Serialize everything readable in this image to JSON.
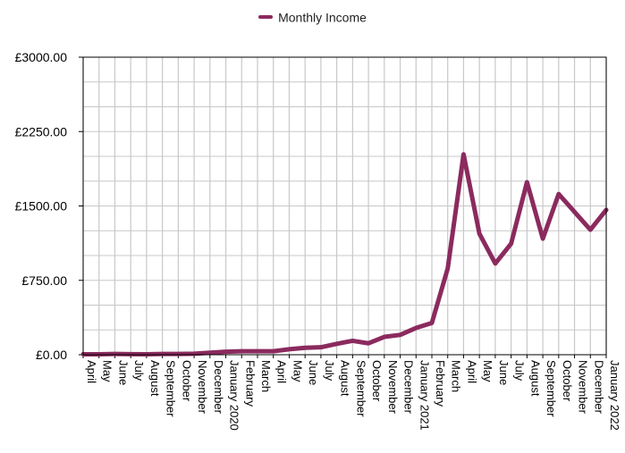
{
  "legend": {
    "series_name": "Monthly Income"
  },
  "colors": {
    "series": "#8B2A5E",
    "grid": "#c8c8c8",
    "axis": "#000000"
  },
  "chart_data": {
    "type": "line",
    "title": "",
    "xlabel": "",
    "ylabel": "",
    "ylim": [
      0,
      3000
    ],
    "yticks": [
      "£0.00",
      "£750.00",
      "£1500.00",
      "£2250.00",
      "£3000.00"
    ],
    "ytick_values": [
      0,
      750,
      1500,
      2250,
      3000
    ],
    "grid": true,
    "legend_position": "top-center",
    "categories": [
      "April",
      "May",
      "June",
      "July",
      "August",
      "September",
      "October",
      "November",
      "December",
      "January 2020",
      "February",
      "March",
      "April",
      "May",
      "June",
      "July",
      "August",
      "September",
      "October",
      "November",
      "December",
      "January 2021",
      "February",
      "March",
      "April",
      "May",
      "June",
      "July",
      "August",
      "September",
      "October",
      "November",
      "December",
      "January 2022"
    ],
    "series": [
      {
        "name": "Monthly Income",
        "values": [
          5,
          5,
          8,
          6,
          4,
          8,
          8,
          10,
          20,
          30,
          35,
          35,
          35,
          55,
          70,
          75,
          110,
          140,
          115,
          180,
          200,
          270,
          320,
          870,
          2020,
          1220,
          920,
          1120,
          1740,
          1170,
          1620,
          1440,
          1260,
          1460
        ]
      }
    ]
  }
}
